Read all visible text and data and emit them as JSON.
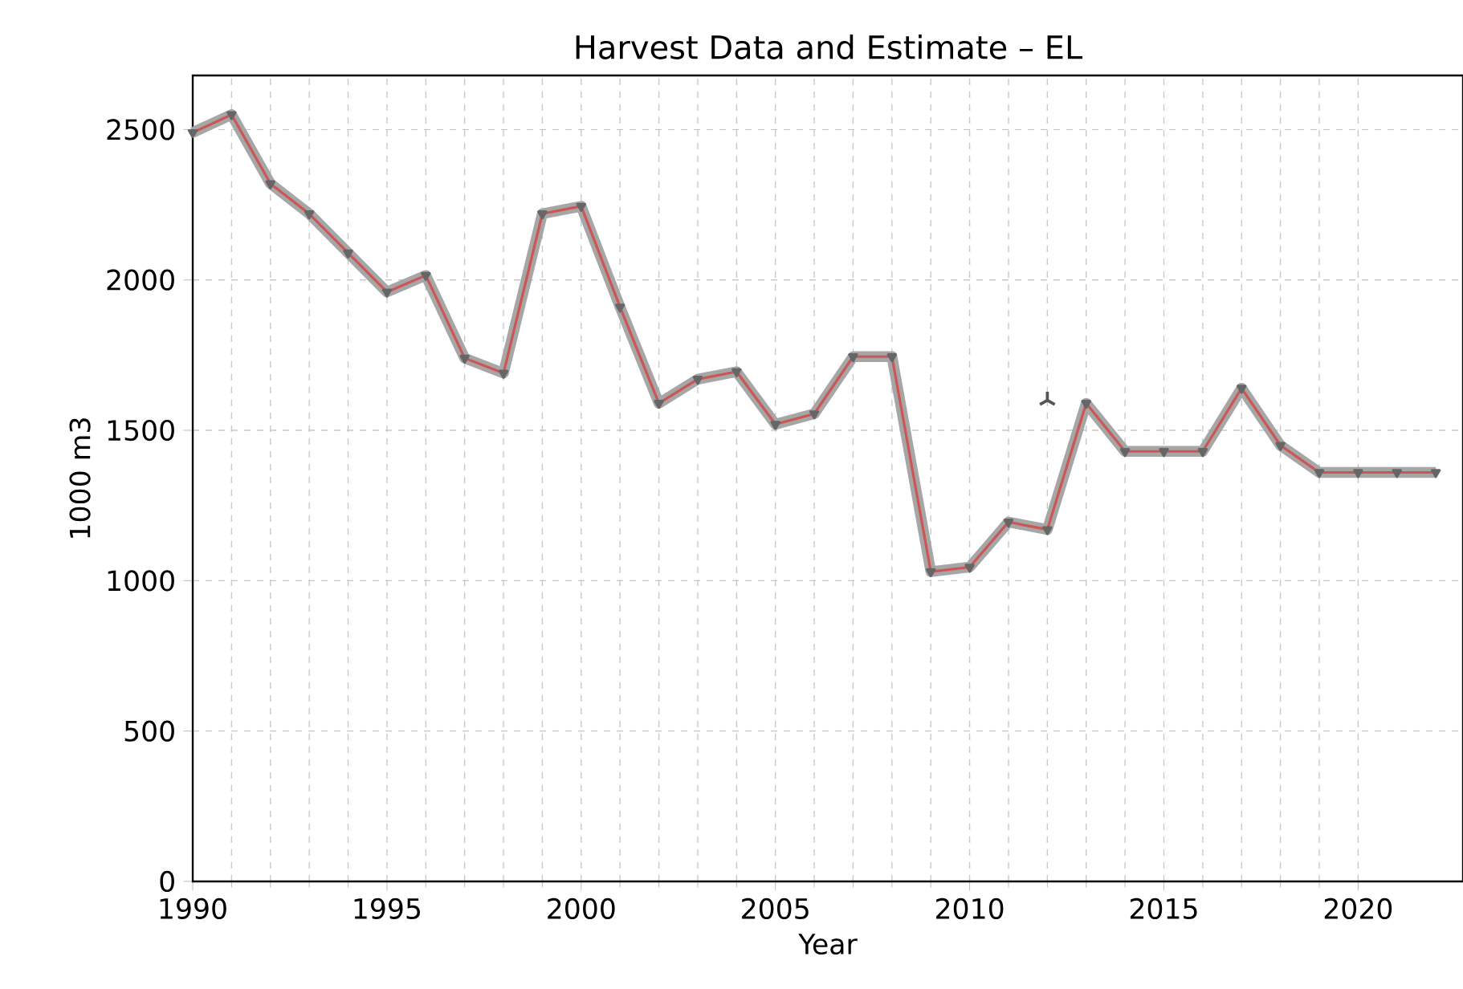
{
  "chart_data": {
    "type": "line",
    "title": "Harvest Data and Estimate – EL",
    "xlabel": "Year",
    "ylabel": "1000 m3",
    "x": [
      1990,
      1991,
      1992,
      1993,
      1994,
      1995,
      1996,
      1997,
      1998,
      1999,
      2000,
      2001,
      2002,
      2003,
      2004,
      2005,
      2006,
      2007,
      2008,
      2009,
      2010,
      2011,
      2012,
      2013,
      2014,
      2015,
      2016,
      2017,
      2018,
      2019,
      2020,
      2021,
      2022
    ],
    "series": [
      {
        "color": "#cc5555",
        "marker": "triangle",
        "values": [
          2490,
          2550,
          2320,
          2220,
          2090,
          1960,
          2015,
          1740,
          1690,
          2220,
          2245,
          1910,
          1590,
          1670,
          1695,
          1520,
          1555,
          1745,
          1745,
          1030,
          1045,
          1195,
          1170,
          1590,
          1430,
          1430,
          1430,
          1640,
          1450,
          1360,
          1360,
          1360,
          1360
        ]
      },
      {
        "type": "scatter",
        "color": "#555555",
        "marker": "cross",
        "x": [
          2012
        ],
        "values": [
          1600
        ]
      }
    ],
    "xlim": [
      1990,
      2022.7
    ],
    "ylim": [
      0,
      2680
    ],
    "xticks": [
      1990,
      1995,
      2000,
      2005,
      2010,
      2015,
      2020
    ],
    "yticks": [
      0,
      500,
      1000,
      1500,
      2000,
      2500
    ],
    "grid": true
  }
}
